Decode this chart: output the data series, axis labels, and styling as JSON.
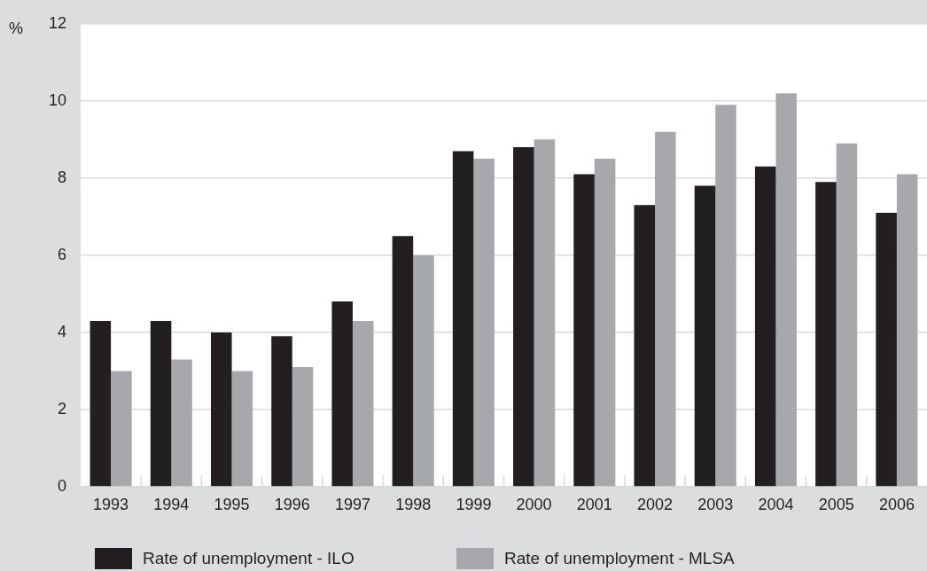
{
  "chart_data": {
    "type": "bar",
    "ylabel": "%",
    "categories": [
      "1993",
      "1994",
      "1995",
      "1996",
      "1997",
      "1998",
      "1999",
      "2000",
      "2001",
      "2002",
      "2003",
      "2004",
      "2005",
      "2006"
    ],
    "series": [
      {
        "name": "Rate of unemployment - ILO",
        "color": "#231f20",
        "values": [
          4.3,
          4.3,
          4.0,
          3.9,
          4.8,
          6.5,
          8.7,
          8.8,
          8.1,
          7.3,
          7.8,
          8.3,
          7.9,
          7.1
        ]
      },
      {
        "name": "Rate of unemployment - MLSA",
        "color": "#a7a8ab",
        "values": [
          3.0,
          3.3,
          3.0,
          3.1,
          4.3,
          6.0,
          8.5,
          9.0,
          8.5,
          9.2,
          9.9,
          10.2,
          8.9,
          8.1
        ]
      }
    ],
    "ylim": [
      0,
      12
    ],
    "yticks": [
      0,
      2,
      4,
      6,
      8,
      10,
      12
    ],
    "grid": "y",
    "legend": "bottom"
  }
}
